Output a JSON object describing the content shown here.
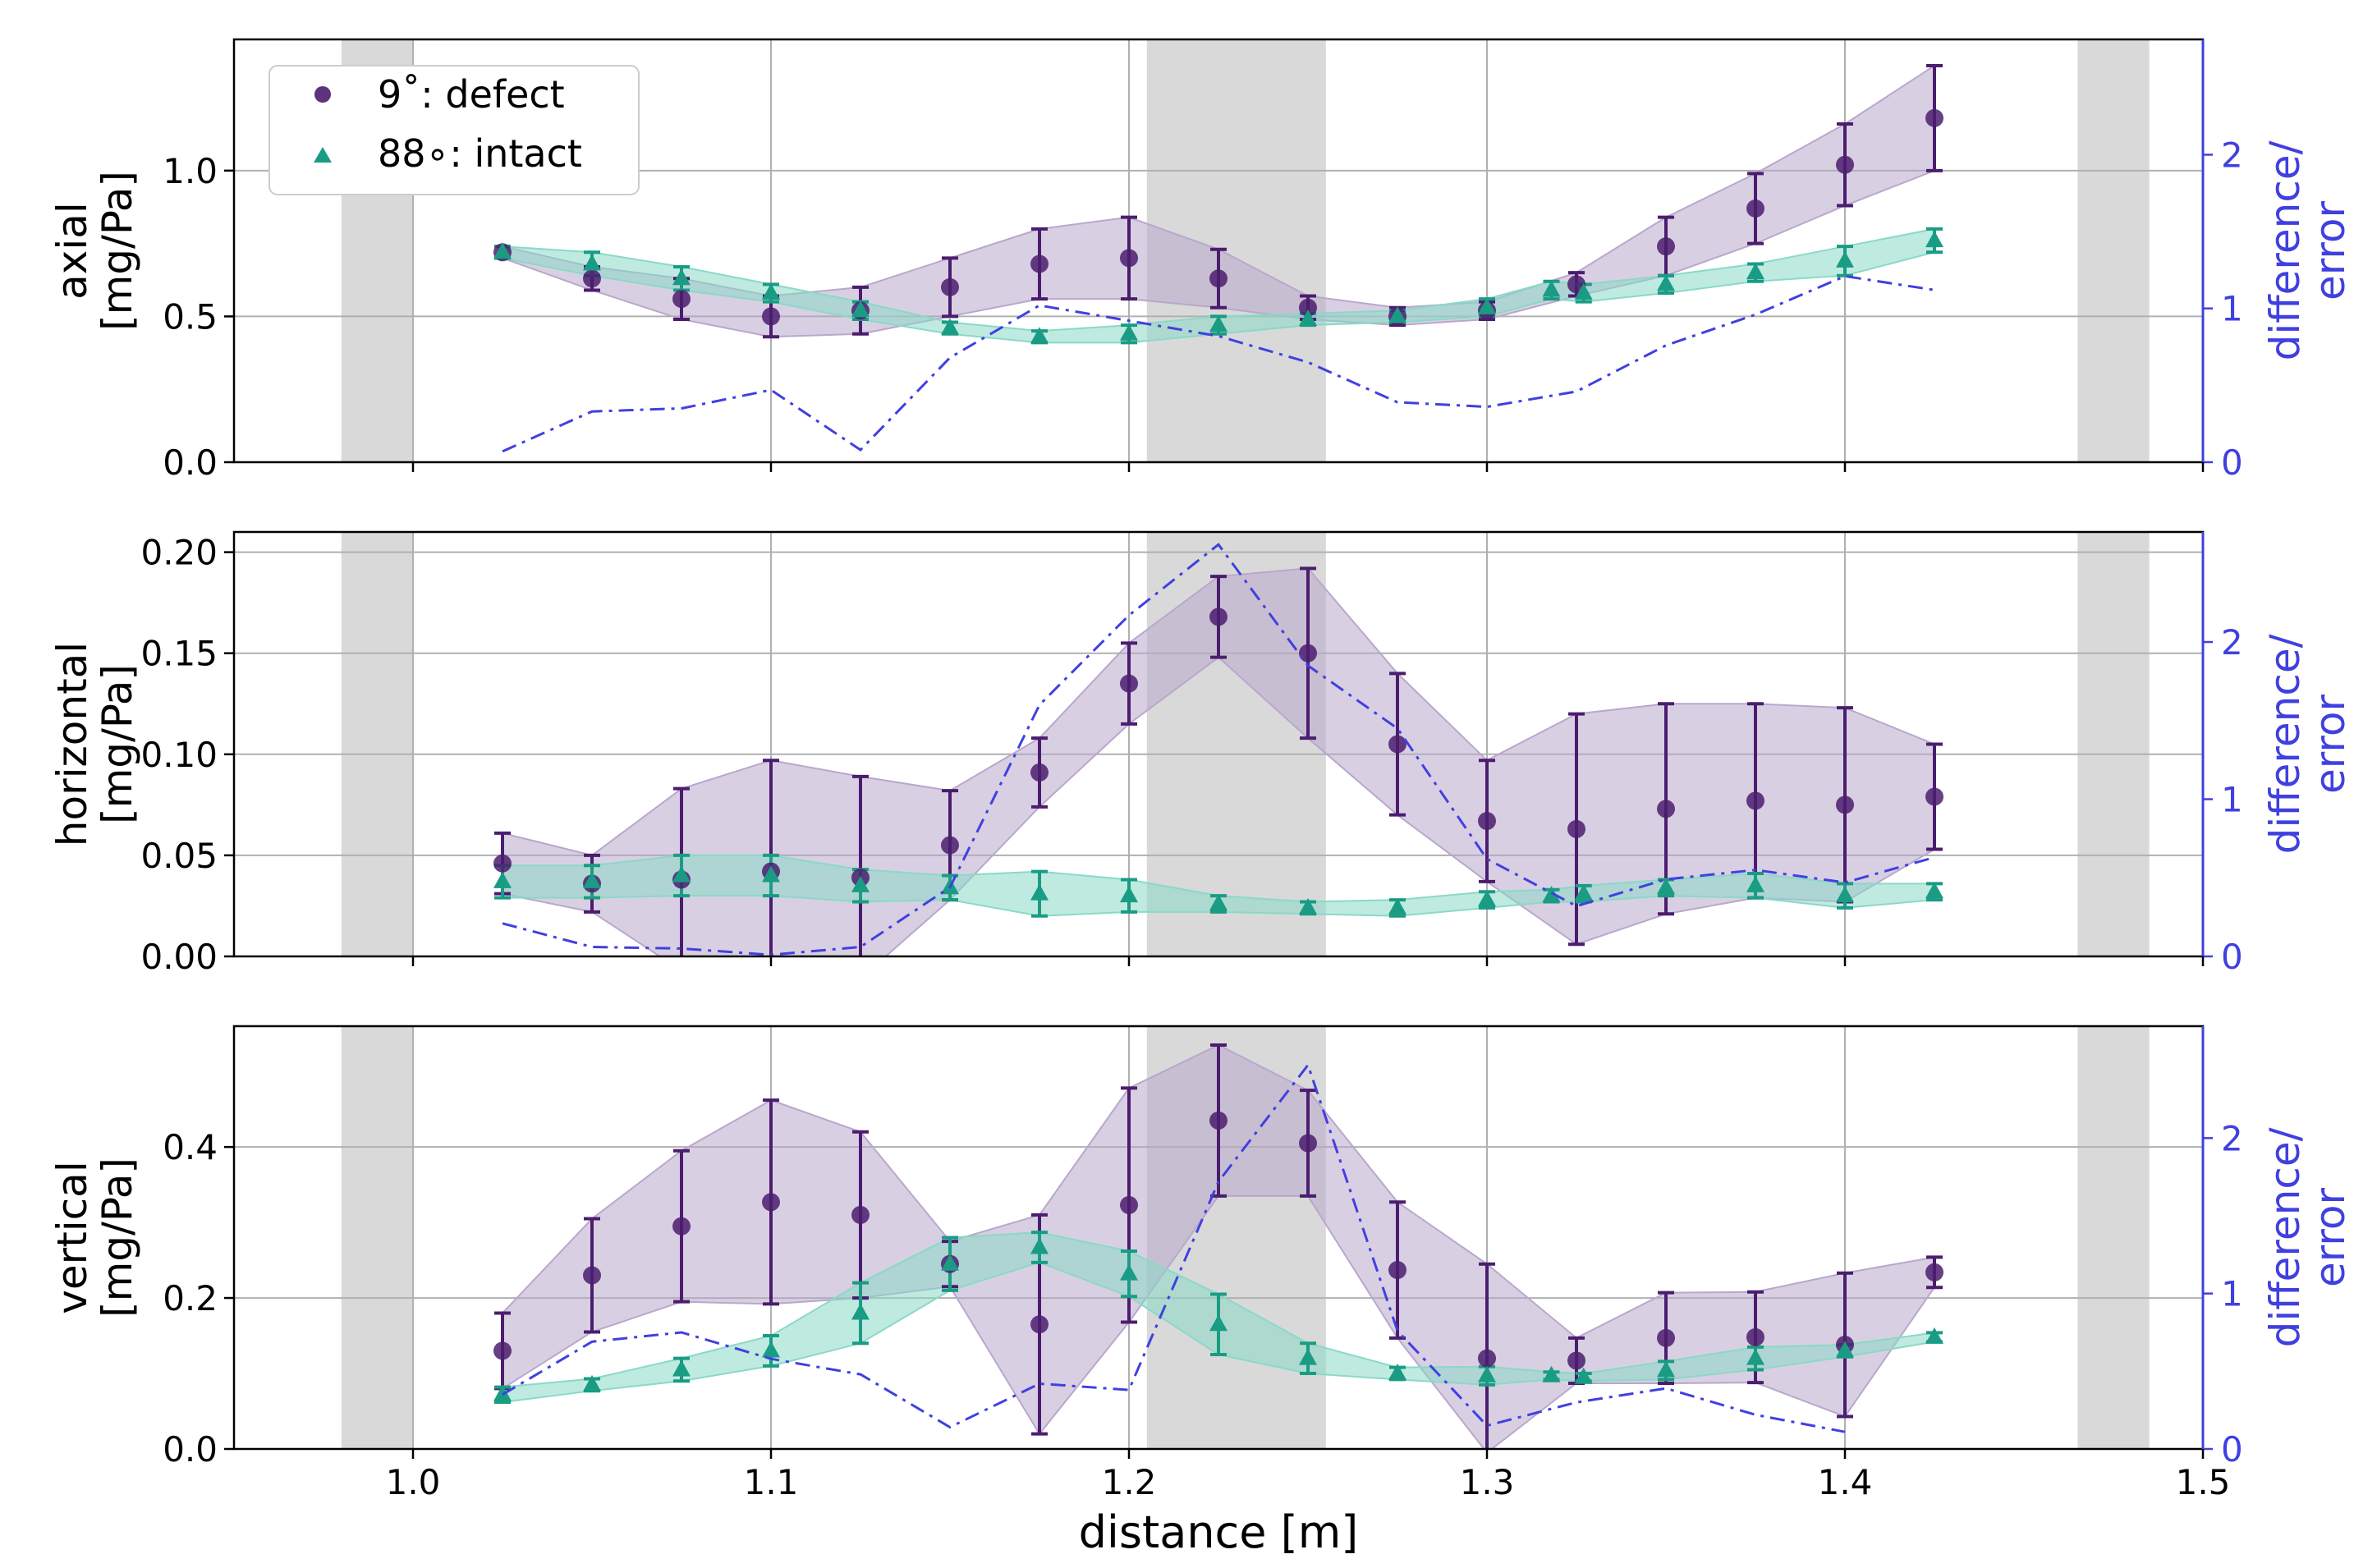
{
  "chart_data": {
    "type": "scatter",
    "xlabel": "distance [m]",
    "xlim": [
      0.95,
      1.5
    ],
    "xticks": [
      "1.0",
      "1.1",
      "1.2",
      "1.3",
      "1.4",
      "1.5"
    ],
    "xtick_values": [
      1.0,
      1.1,
      1.2,
      1.3,
      1.4,
      1.5
    ],
    "grid": true,
    "shaded_regions_x": [
      [
        0.98,
        1.0
      ],
      [
        1.205,
        1.255
      ],
      [
        1.465,
        1.485
      ]
    ],
    "legend": {
      "placement": "top-left of first panel",
      "entries": [
        {
          "label": "9$^\\circ$: defect",
          "display": "9˚: defect",
          "series": "defect"
        },
        {
          "label": "88∘: intact",
          "display": "88∘: intact",
          "series": "intact"
        }
      ]
    },
    "colors": {
      "defect": "#4b1d6e",
      "defect_fill": "#b9a7cc",
      "intact": "#1a9c84",
      "intact_fill": "#8ad9c7",
      "diff": "#4040e0",
      "shade": "#d9d9d9",
      "grid": "#b0b0b0"
    },
    "right_ylabel": "difference/\nerror",
    "right_ylabel_lines": [
      "difference/",
      "error"
    ],
    "panels": [
      {
        "name": "axial",
        "ylabel_lines": [
          "axial",
          "[mg/Pa]"
        ],
        "ylim": [
          0,
          1.45
        ],
        "yticks": [
          0.0,
          0.5,
          1.0
        ],
        "ytick_labels": [
          "0.0",
          "0.5",
          "1.0"
        ],
        "ylim_right": [
          0,
          2.75
        ],
        "yticks_right": [
          0,
          1,
          2
        ],
        "ytick_labels_right": [
          "0",
          "1",
          "2"
        ],
        "defect": {
          "x": [
            1.025,
            1.05,
            1.075,
            1.1,
            1.125,
            1.15,
            1.175,
            1.2,
            1.225,
            1.25,
            1.275,
            1.3,
            1.325,
            1.35,
            1.375,
            1.4,
            1.425
          ],
          "y": [
            0.72,
            0.63,
            0.56,
            0.5,
            0.52,
            0.6,
            0.68,
            0.7,
            0.63,
            0.53,
            0.5,
            0.52,
            0.61,
            0.74,
            0.87,
            1.02,
            1.18
          ],
          "err": [
            0.02,
            0.04,
            0.07,
            0.07,
            0.08,
            0.1,
            0.12,
            0.14,
            0.1,
            0.04,
            0.03,
            0.03,
            0.04,
            0.1,
            0.12,
            0.14,
            0.18
          ]
        },
        "intact": {
          "x": [
            1.025,
            1.05,
            1.075,
            1.1,
            1.125,
            1.15,
            1.175,
            1.2,
            1.225,
            1.25,
            1.275,
            1.3,
            1.318,
            1.327,
            1.35,
            1.375,
            1.4,
            1.425
          ],
          "y": [
            0.72,
            0.68,
            0.63,
            0.58,
            0.52,
            0.46,
            0.43,
            0.44,
            0.47,
            0.49,
            0.5,
            0.53,
            0.59,
            0.58,
            0.61,
            0.65,
            0.69,
            0.76
          ],
          "err": [
            0.02,
            0.04,
            0.04,
            0.03,
            0.03,
            0.02,
            0.02,
            0.03,
            0.03,
            0.02,
            0.02,
            0.03,
            0.03,
            0.03,
            0.03,
            0.03,
            0.05,
            0.04
          ]
        },
        "diff": {
          "x": [
            1.025,
            1.05,
            1.075,
            1.1,
            1.125,
            1.15,
            1.175,
            1.2,
            1.225,
            1.25,
            1.275,
            1.3,
            1.325,
            1.35,
            1.375,
            1.4,
            1.425
          ],
          "y": [
            0.07,
            0.33,
            0.35,
            0.47,
            0.08,
            0.68,
            1.02,
            0.92,
            0.82,
            0.65,
            0.39,
            0.36,
            0.46,
            0.76,
            0.96,
            1.21,
            1.12
          ]
        }
      },
      {
        "name": "horizontal",
        "ylabel_lines": [
          "horizontal",
          "[mg/Pa]"
        ],
        "ylim": [
          0,
          0.21
        ],
        "yticks": [
          0.0,
          0.05,
          0.1,
          0.15,
          0.2
        ],
        "ytick_labels": [
          "0.00",
          "0.05",
          "0.10",
          "0.15",
          "0.20"
        ],
        "ylim_right": [
          0,
          2.7
        ],
        "yticks_right": [
          0,
          1,
          2
        ],
        "ytick_labels_right": [
          "0",
          "1",
          "2"
        ],
        "defect": {
          "x": [
            1.025,
            1.05,
            1.075,
            1.1,
            1.125,
            1.15,
            1.175,
            1.2,
            1.225,
            1.25,
            1.275,
            1.3,
            1.325,
            1.35,
            1.375,
            1.4,
            1.425
          ],
          "y": [
            0.046,
            0.036,
            0.038,
            0.042,
            0.039,
            0.055,
            0.091,
            0.135,
            0.168,
            0.15,
            0.105,
            0.067,
            0.063,
            0.073,
            0.077,
            0.075,
            0.079
          ],
          "err": [
            0.015,
            0.014,
            0.045,
            0.055,
            0.05,
            0.027,
            0.017,
            0.02,
            0.02,
            0.042,
            0.035,
            0.03,
            0.057,
            0.052,
            0.048,
            0.048,
            0.026
          ]
        },
        "intact": {
          "x": [
            1.025,
            1.05,
            1.075,
            1.1,
            1.125,
            1.15,
            1.175,
            1.2,
            1.225,
            1.25,
            1.275,
            1.3,
            1.318,
            1.327,
            1.35,
            1.375,
            1.4,
            1.425
          ],
          "y": [
            0.037,
            0.037,
            0.04,
            0.04,
            0.035,
            0.034,
            0.031,
            0.03,
            0.026,
            0.024,
            0.024,
            0.028,
            0.03,
            0.031,
            0.034,
            0.035,
            0.03,
            0.032
          ],
          "err": [
            0.008,
            0.008,
            0.01,
            0.01,
            0.008,
            0.006,
            0.011,
            0.008,
            0.004,
            0.003,
            0.004,
            0.004,
            0.003,
            0.004,
            0.004,
            0.006,
            0.006,
            0.004
          ]
        },
        "diff": {
          "x": [
            1.025,
            1.05,
            1.075,
            1.1,
            1.125,
            1.15,
            1.175,
            1.2,
            1.225,
            1.25,
            1.275,
            1.3,
            1.325,
            1.35,
            1.375,
            1.4,
            1.425
          ],
          "y": [
            0.21,
            0.06,
            0.05,
            0.01,
            0.06,
            0.44,
            1.6,
            2.17,
            2.62,
            1.85,
            1.45,
            0.62,
            0.32,
            0.49,
            0.55,
            0.47,
            0.63
          ]
        }
      },
      {
        "name": "vertical",
        "ylabel_lines": [
          "vertical",
          "[mg/Pa]"
        ],
        "ylim": [
          0,
          0.56
        ],
        "yticks": [
          0.0,
          0.2,
          0.4
        ],
        "ytick_labels": [
          "0.0",
          "0.2",
          "0.4"
        ],
        "ylim_right": [
          0,
          2.72
        ],
        "yticks_right": [
          0,
          1,
          2
        ],
        "ytick_labels_right": [
          "0",
          "1",
          "2"
        ],
        "defect": {
          "x": [
            1.025,
            1.05,
            1.075,
            1.1,
            1.125,
            1.15,
            1.175,
            1.2,
            1.225,
            1.25,
            1.275,
            1.3,
            1.325,
            1.35,
            1.375,
            1.4,
            1.425
          ],
          "y": [
            0.13,
            0.23,
            0.295,
            0.327,
            0.31,
            0.245,
            0.165,
            0.323,
            0.435,
            0.405,
            0.237,
            0.12,
            0.117,
            0.147,
            0.148,
            0.138,
            0.234
          ],
          "err": [
            0.05,
            0.075,
            0.1,
            0.135,
            0.11,
            0.03,
            0.145,
            0.155,
            0.1,
            0.07,
            0.09,
            0.125,
            0.03,
            0.06,
            0.06,
            0.095,
            0.02
          ]
        },
        "intact": {
          "x": [
            1.025,
            1.05,
            1.075,
            1.1,
            1.125,
            1.15,
            1.175,
            1.2,
            1.225,
            1.25,
            1.275,
            1.3,
            1.318,
            1.327,
            1.35,
            1.375,
            1.4,
            1.425
          ],
          "y": [
            0.072,
            0.085,
            0.105,
            0.13,
            0.18,
            0.245,
            0.267,
            0.232,
            0.165,
            0.12,
            0.1,
            0.097,
            0.097,
            0.095,
            0.104,
            0.12,
            0.13,
            0.148
          ],
          "err": [
            0.01,
            0.008,
            0.015,
            0.02,
            0.04,
            0.035,
            0.02,
            0.03,
            0.04,
            0.02,
            0.008,
            0.012,
            0.005,
            0.005,
            0.012,
            0.015,
            0.008,
            0.006
          ]
        },
        "diff": {
          "x": [
            1.025,
            1.05,
            1.075,
            1.1,
            1.125,
            1.15,
            1.175,
            1.2,
            1.225,
            1.25,
            1.275,
            1.3,
            1.325,
            1.35,
            1.375,
            1.4
          ],
          "y": [
            0.35,
            0.69,
            0.75,
            0.58,
            0.48,
            0.14,
            0.42,
            0.38,
            1.72,
            2.47,
            0.76,
            0.15,
            0.3,
            0.39,
            0.22,
            0.11
          ]
        }
      }
    ]
  }
}
